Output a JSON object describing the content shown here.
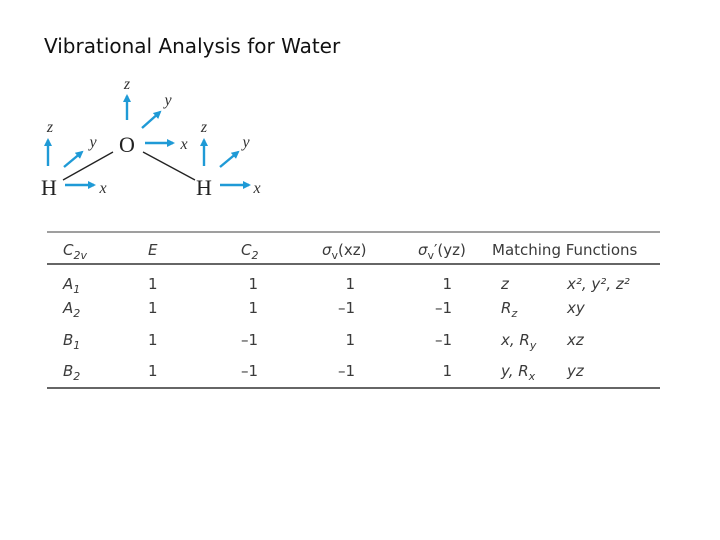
{
  "title": "Vibrational Analysis for Water",
  "diagram": {
    "atoms": [
      "O",
      "H",
      "H"
    ],
    "axes": {
      "oxygen": [
        "z",
        "y",
        "x"
      ],
      "left_hydrogen": [
        "z",
        "y",
        "x"
      ],
      "right_hydrogen": [
        "z",
        "y",
        "x"
      ]
    }
  },
  "table": {
    "header": [
      {
        "base": "C",
        "sub": "2v"
      },
      "E",
      {
        "base": "C",
        "sub": "2"
      },
      {
        "base": "σ",
        "sub": "v",
        "after": "(xz)"
      },
      {
        "base": "σ",
        "sub": "v",
        "after": "′(yz)"
      },
      "Matching Functions"
    ],
    "rows": [
      [
        {
          "base": "A",
          "sub": "1"
        },
        "1",
        "1",
        "1",
        "1",
        "z",
        "x², y², z²"
      ],
      [
        {
          "base": "A",
          "sub": "2"
        },
        "1",
        "1",
        "–1",
        "–1",
        {
          "base": "R",
          "sub": "z"
        },
        "xy"
      ],
      [
        {
          "base": "B",
          "sub": "1"
        },
        "1",
        "–1",
        "1",
        "–1",
        {
          "base": "x, R",
          "sub": "y"
        },
        "xz"
      ],
      [
        {
          "base": "B",
          "sub": "2"
        },
        "1",
        "–1",
        "–1",
        "1",
        {
          "base": "y, R",
          "sub": "x"
        },
        "yz"
      ]
    ]
  }
}
